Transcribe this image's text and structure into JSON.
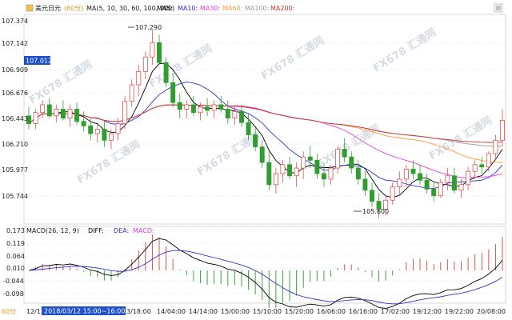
{
  "header": {
    "symbol": "美元日元",
    "period": "(60分)",
    "ma_title": "MA(5, 10, 30, 60, 100, 200)",
    "ma_items": [
      {
        "label": "MA5:",
        "color": "#000000"
      },
      {
        "label": "MA10:",
        "color": "#3333cc"
      },
      {
        "label": "MA30:",
        "color": "#e040e0"
      },
      {
        "label": "MA60:",
        "color": "#ff9933"
      },
      {
        "label": "MA100:",
        "color": "#999999"
      },
      {
        "label": "MA200:",
        "color": "#cc3333"
      }
    ]
  },
  "price_axis": {
    "ticks": [
      "107.374",
      "107.142",
      "106.909",
      "106.676",
      "106.443",
      "106.210",
      "105.977",
      "105.744"
    ],
    "current_value": "107.012",
    "current_color": "#1e50c8"
  },
  "annotations": {
    "high_label": "107.290",
    "low_label": "105.600"
  },
  "macd": {
    "title": "MACD(26, 12, 9)",
    "diff_label": "DIFF:",
    "dea_label": "DEA:",
    "macd_label": "MACD:",
    "diff_color": "#000000",
    "dea_color": "#3333cc",
    "macd_label_color": "#e040e0",
    "ticks": [
      "0.173",
      "0.119",
      "0.064",
      "0.010",
      "-0.044",
      "-0.098"
    ],
    "pos_color": "#d9534f",
    "neg_color": "#3aa53a"
  },
  "time_axis": {
    "labels": [
      "12/1",
      "3/18:00",
      "14/04:00",
      "14/14:00",
      "15/00:00",
      "15/10:00",
      "15/20:00",
      "16/06:00",
      "16/16:00",
      "17/02:00",
      "19/12:00",
      "19/22:00",
      "20/08:00"
    ],
    "tooltip": "2018/03/12 15:00~16:00",
    "period_small": "60分"
  },
  "watermark": "FX678 汇通网",
  "colors": {
    "up": "#d9534f",
    "down": "#2f9e2f",
    "grid": "#c8c8c8"
  },
  "chart_data": {
    "type": "candlestick",
    "symbol": "美元日元",
    "interval": "60分",
    "ylim": [
      105.56,
      107.42
    ],
    "candles": [
      [
        106.52,
        106.6,
        106.4,
        106.45
      ],
      [
        106.45,
        106.58,
        106.4,
        106.55
      ],
      [
        106.55,
        106.66,
        106.5,
        106.62
      ],
      [
        106.62,
        106.68,
        106.5,
        106.52
      ],
      [
        106.52,
        106.62,
        106.46,
        106.58
      ],
      [
        106.58,
        106.66,
        106.48,
        106.5
      ],
      [
        106.5,
        106.62,
        106.42,
        106.58
      ],
      [
        106.58,
        106.64,
        106.44,
        106.47
      ],
      [
        106.47,
        106.56,
        106.38,
        106.43
      ],
      [
        106.43,
        106.5,
        106.3,
        106.36
      ],
      [
        106.36,
        106.44,
        106.28,
        106.4
      ],
      [
        106.4,
        106.48,
        106.24,
        106.3
      ],
      [
        106.3,
        106.4,
        106.22,
        106.36
      ],
      [
        106.36,
        106.5,
        106.3,
        106.45
      ],
      [
        106.45,
        106.7,
        106.4,
        106.65
      ],
      [
        106.65,
        106.85,
        106.6,
        106.8
      ],
      [
        106.8,
        106.98,
        106.7,
        106.92
      ],
      [
        106.92,
        107.1,
        106.85,
        107.05
      ],
      [
        107.05,
        107.29,
        106.98,
        107.18
      ],
      [
        107.18,
        107.25,
        106.98,
        107.0
      ],
      [
        107.0,
        107.05,
        106.78,
        106.82
      ],
      [
        106.82,
        106.9,
        106.6,
        106.64
      ],
      [
        106.64,
        106.72,
        106.5,
        106.58
      ],
      [
        106.58,
        106.66,
        106.5,
        106.62
      ],
      [
        106.62,
        106.7,
        106.52,
        106.55
      ],
      [
        106.55,
        106.64,
        106.48,
        106.6
      ],
      [
        106.6,
        106.68,
        106.52,
        106.57
      ],
      [
        106.57,
        106.66,
        106.5,
        106.62
      ],
      [
        106.62,
        106.7,
        106.55,
        106.58
      ],
      [
        106.58,
        106.66,
        106.45,
        106.5
      ],
      [
        106.5,
        106.6,
        106.44,
        106.56
      ],
      [
        106.56,
        106.62,
        106.42,
        106.46
      ],
      [
        106.46,
        106.54,
        106.3,
        106.35
      ],
      [
        106.35,
        106.42,
        106.2,
        106.24
      ],
      [
        106.24,
        106.3,
        106.05,
        106.1
      ],
      [
        106.1,
        106.2,
        105.85,
        105.9
      ],
      [
        105.9,
        106.05,
        105.82,
        106.0
      ],
      [
        106.0,
        106.12,
        105.92,
        106.08
      ],
      [
        106.08,
        106.15,
        105.95,
        105.98
      ],
      [
        105.98,
        106.1,
        105.88,
        106.05
      ],
      [
        106.05,
        106.2,
        105.95,
        106.15
      ],
      [
        106.15,
        106.25,
        106.05,
        106.12
      ],
      [
        106.12,
        106.18,
        105.95,
        106.0
      ],
      [
        106.0,
        106.1,
        105.88,
        105.95
      ],
      [
        105.95,
        106.08,
        105.9,
        106.05
      ],
      [
        106.05,
        106.25,
        106.0,
        106.22
      ],
      [
        106.22,
        106.32,
        106.1,
        106.15
      ],
      [
        106.15,
        106.2,
        106.0,
        106.05
      ],
      [
        106.05,
        106.12,
        105.9,
        105.95
      ],
      [
        105.95,
        106.02,
        105.8,
        105.85
      ],
      [
        105.85,
        105.92,
        105.7,
        105.75
      ],
      [
        105.75,
        105.82,
        105.6,
        105.68
      ],
      [
        105.68,
        105.8,
        105.62,
        105.76
      ],
      [
        105.76,
        105.92,
        105.72,
        105.88
      ],
      [
        105.88,
        106.02,
        105.8,
        105.95
      ],
      [
        105.95,
        106.08,
        105.88,
        106.04
      ],
      [
        106.04,
        106.12,
        105.95,
        106.0
      ],
      [
        106.0,
        106.08,
        105.9,
        105.94
      ],
      [
        105.94,
        106.0,
        105.82,
        105.86
      ],
      [
        105.86,
        105.92,
        105.75,
        105.8
      ],
      [
        105.8,
        105.95,
        105.78,
        105.92
      ],
      [
        105.92,
        106.05,
        105.85,
        105.98
      ],
      [
        105.98,
        106.05,
        105.82,
        105.85
      ],
      [
        105.85,
        105.95,
        105.78,
        105.9
      ],
      [
        105.9,
        106.06,
        105.85,
        106.02
      ],
      [
        106.02,
        106.12,
        105.95,
        106.08
      ],
      [
        106.08,
        106.15,
        106.0,
        106.06
      ],
      [
        106.06,
        106.2,
        106.02,
        106.18
      ],
      [
        106.18,
        106.35,
        106.12,
        106.3
      ],
      [
        106.3,
        106.58,
        106.25,
        106.48
      ]
    ]
  }
}
